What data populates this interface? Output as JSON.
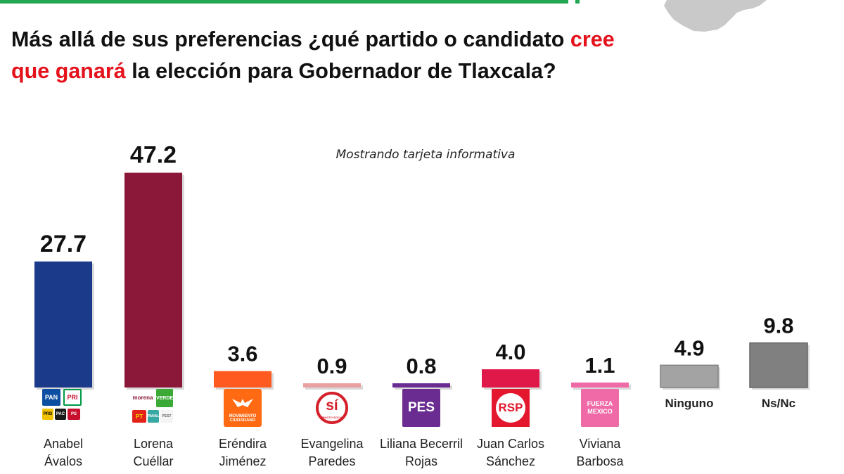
{
  "title_parts": {
    "before": "Más allá de sus preferencias ¿qué partido o candidato ",
    "highlight": "cree que ganará",
    "after": " la elección para Gobernador de Tlaxcala?"
  },
  "note": "Mostrando tarjeta informativa",
  "colors": {
    "accent_green": "#22a650",
    "title_highlight": "#e5111b"
  },
  "chart_data": {
    "type": "bar",
    "title": "Más allá de sus preferencias ¿qué partido o candidato cree que ganará la elección para Gobernador de Tlaxcala?",
    "annotation": "Mostrando tarjeta informativa",
    "ylim": [
      0,
      50
    ],
    "grid": false,
    "data_labels": [
      "27.7",
      "47.2",
      "3.6",
      "0.9",
      "0.8",
      "4.0",
      "1.1",
      "4.9",
      "9.8"
    ],
    "values": [
      27.7,
      47.2,
      3.6,
      0.9,
      0.8,
      4.0,
      1.1,
      4.9,
      9.8
    ],
    "bar_colors": [
      "#1c3a8a",
      "#8b1838",
      "#ff5a1f",
      "#e8a0a0",
      "#6a2c91",
      "#e0184a",
      "#f06aa8",
      "#a3a3a3",
      "#808080"
    ],
    "categories": [
      {
        "name_lines": [
          "Anabel",
          "Ávalos"
        ],
        "logo": [
          "PAN",
          "PRI",
          "PRD",
          "PAC",
          "PS"
        ]
      },
      {
        "name_lines": [
          "Lorena",
          "Cuéllar"
        ],
        "logo": [
          "morena",
          "VERDE",
          "PT",
          "PANAL",
          "PEST"
        ]
      },
      {
        "name_lines": [
          "Eréndira",
          "Jiménez"
        ],
        "logo": [
          "MOVIMIENTO CIUDADANO"
        ]
      },
      {
        "name_lines": [
          "Evangelina",
          "Paredes"
        ],
        "logo": [
          "sí",
          "IMPACTO SOCIAL"
        ]
      },
      {
        "name_lines": [
          "Liliana Becerril",
          "Rojas"
        ],
        "logo": [
          "PES"
        ]
      },
      {
        "name_lines": [
          "Juan Carlos",
          "Sánchez"
        ],
        "logo": [
          "RSP"
        ]
      },
      {
        "name_lines": [
          "Viviana",
          "Barbosa"
        ],
        "logo": [
          "FUERZA",
          "MEXICO"
        ]
      },
      {
        "name_lines": [
          "Ninguno"
        ],
        "logo": []
      },
      {
        "name_lines": [
          "Ns/Nc"
        ],
        "logo": []
      }
    ]
  }
}
